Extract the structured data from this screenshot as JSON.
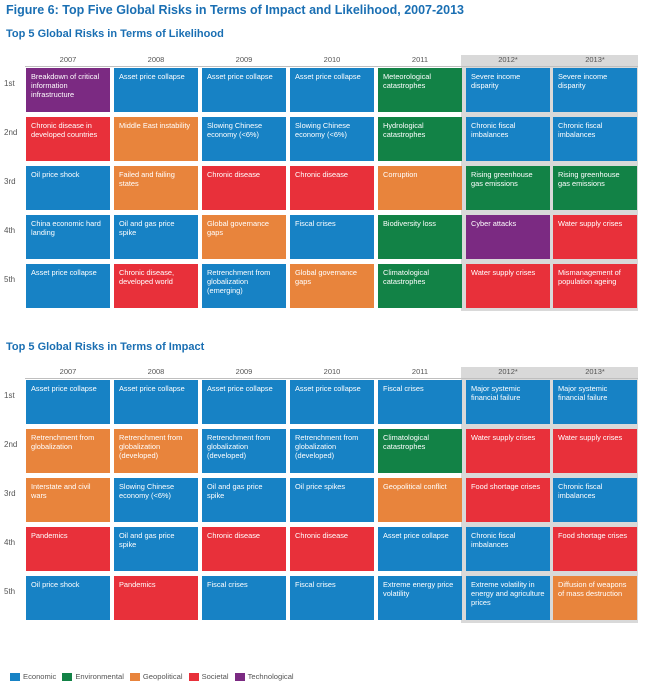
{
  "figure_title": "Figure 6: Top Five Global Risks in Terms of Impact and Likelihood, 2007-2013",
  "categories": {
    "Economic": "#1782c5",
    "Environmental": "#128246",
    "Geopolitical": "#e8843c",
    "Societal": "#e8303a",
    "Technological": "#7b2a82"
  },
  "legend": [
    "Economic",
    "Environmental",
    "Geopolitical",
    "Societal",
    "Technological"
  ],
  "chart_data": [
    {
      "type": "table",
      "title": "Top 5 Global Risks in Terms of Likelihood",
      "years": [
        "2007",
        "2008",
        "2009",
        "2010",
        "2011",
        "2012*",
        "2013*"
      ],
      "ranks": [
        "1st",
        "2nd",
        "3rd",
        "4th",
        "5th"
      ],
      "cells": [
        [
          {
            "label": "Breakdown of critical information infrastructure",
            "category": "Technological"
          },
          {
            "label": "Chronic disease in developed countries",
            "category": "Societal"
          },
          {
            "label": "Oil price shock",
            "category": "Economic"
          },
          {
            "label": "China economic hard landing",
            "category": "Economic"
          },
          {
            "label": "Asset price collapse",
            "category": "Economic"
          }
        ],
        [
          {
            "label": "Asset price collapse",
            "category": "Economic"
          },
          {
            "label": "Middle East instability",
            "category": "Geopolitical"
          },
          {
            "label": "Failed and failing states",
            "category": "Geopolitical"
          },
          {
            "label": "Oil and gas price spike",
            "category": "Economic"
          },
          {
            "label": "Chronic disease, developed world",
            "category": "Societal"
          }
        ],
        [
          {
            "label": "Asset price collapse",
            "category": "Economic"
          },
          {
            "label": "Slowing Chinese economy (<6%)",
            "category": "Economic"
          },
          {
            "label": "Chronic disease",
            "category": "Societal"
          },
          {
            "label": "Global governance gaps",
            "category": "Geopolitical"
          },
          {
            "label": "Retrenchment from globalization (emerging)",
            "category": "Economic"
          }
        ],
        [
          {
            "label": "Asset price collapse",
            "category": "Economic"
          },
          {
            "label": "Slowing Chinese economy (<6%)",
            "category": "Economic"
          },
          {
            "label": "Chronic disease",
            "category": "Societal"
          },
          {
            "label": "Fiscal crises",
            "category": "Economic"
          },
          {
            "label": "Global governance gaps",
            "category": "Geopolitical"
          }
        ],
        [
          {
            "label": "Meteorological catastrophes",
            "category": "Environmental"
          },
          {
            "label": "Hydrological catastrophes",
            "category": "Environmental"
          },
          {
            "label": "Corruption",
            "category": "Geopolitical"
          },
          {
            "label": "Biodiversity loss",
            "category": "Environmental"
          },
          {
            "label": "Climatological catastrophes",
            "category": "Environmental"
          }
        ],
        [
          {
            "label": "Severe income disparity",
            "category": "Economic"
          },
          {
            "label": "Chronic fiscal imbalances",
            "category": "Economic"
          },
          {
            "label": "Rising greenhouse gas emissions",
            "category": "Environmental"
          },
          {
            "label": "Cyber attacks",
            "category": "Technological"
          },
          {
            "label": "Water supply crises",
            "category": "Societal"
          }
        ],
        [
          {
            "label": "Severe income disparity",
            "category": "Economic"
          },
          {
            "label": "Chronic fiscal imbalances",
            "category": "Economic"
          },
          {
            "label": "Rising greenhouse gas emissions",
            "category": "Environmental"
          },
          {
            "label": "Water supply crises",
            "category": "Societal"
          },
          {
            "label": "Mismanagement of population ageing",
            "category": "Societal"
          }
        ]
      ]
    },
    {
      "type": "table",
      "title": "Top 5 Global Risks in Terms of Impact",
      "years": [
        "2007",
        "2008",
        "2009",
        "2010",
        "2011",
        "2012*",
        "2013*"
      ],
      "ranks": [
        "1st",
        "2nd",
        "3rd",
        "4th",
        "5th"
      ],
      "cells": [
        [
          {
            "label": "Asset price collapse",
            "category": "Economic"
          },
          {
            "label": "Retrenchment from globalization",
            "category": "Geopolitical"
          },
          {
            "label": "Interstate and civil wars",
            "category": "Geopolitical"
          },
          {
            "label": "Pandemics",
            "category": "Societal"
          },
          {
            "label": "Oil price shock",
            "category": "Economic"
          }
        ],
        [
          {
            "label": "Asset price collapse",
            "category": "Economic"
          },
          {
            "label": "Retrenchment from globalization (developed)",
            "category": "Geopolitical"
          },
          {
            "label": "Slowing Chinese economy (<6%)",
            "category": "Economic"
          },
          {
            "label": "Oil and gas price spike",
            "category": "Economic"
          },
          {
            "label": "Pandemics",
            "category": "Societal"
          }
        ],
        [
          {
            "label": "Asset price collapse",
            "category": "Economic"
          },
          {
            "label": "Retrenchment from globalization (developed)",
            "category": "Economic"
          },
          {
            "label": "Oil and gas price spike",
            "category": "Economic"
          },
          {
            "label": "Chronic disease",
            "category": "Societal"
          },
          {
            "label": "Fiscal crises",
            "category": "Economic"
          }
        ],
        [
          {
            "label": "Asset price collapse",
            "category": "Economic"
          },
          {
            "label": "Retrenchment from globalization (developed)",
            "category": "Economic"
          },
          {
            "label": "Oil price spikes",
            "category": "Economic"
          },
          {
            "label": "Chronic disease",
            "category": "Societal"
          },
          {
            "label": "Fiscal crises",
            "category": "Economic"
          }
        ],
        [
          {
            "label": "Fiscal crises",
            "category": "Economic"
          },
          {
            "label": "Climatological catastrophes",
            "category": "Environmental"
          },
          {
            "label": "Geopolitical conflict",
            "category": "Geopolitical"
          },
          {
            "label": "Asset price collapse",
            "category": "Economic"
          },
          {
            "label": "Extreme energy price volatility",
            "category": "Economic"
          }
        ],
        [
          {
            "label": "Major systemic financial failure",
            "category": "Economic"
          },
          {
            "label": "Water supply crises",
            "category": "Societal"
          },
          {
            "label": "Food shortage crises",
            "category": "Societal"
          },
          {
            "label": "Chronic fiscal imbalances",
            "category": "Economic"
          },
          {
            "label": "Extreme volatility in energy and agriculture prices",
            "category": "Economic"
          }
        ],
        [
          {
            "label": "Major systemic financial failure",
            "category": "Economic"
          },
          {
            "label": "Water supply crises",
            "category": "Societal"
          },
          {
            "label": "Chronic fiscal imbalances",
            "category": "Economic"
          },
          {
            "label": "Food shortage crises",
            "category": "Societal"
          },
          {
            "label": "Diffusion of weapons of mass destruction",
            "category": "Geopolitical"
          }
        ]
      ]
    }
  ]
}
